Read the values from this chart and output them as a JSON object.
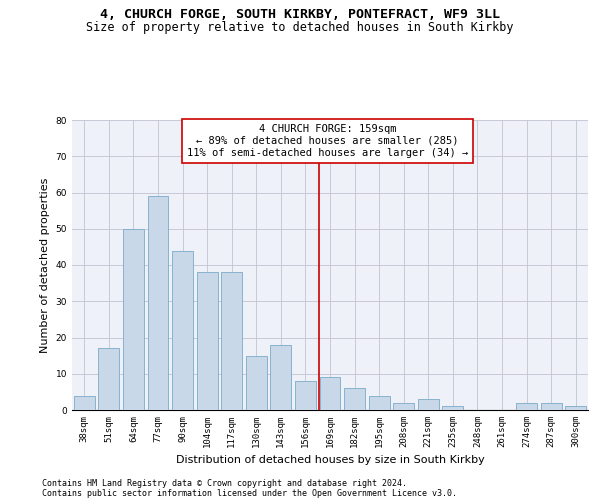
{
  "title_line1": "4, CHURCH FORGE, SOUTH KIRKBY, PONTEFRACT, WF9 3LL",
  "title_line2": "Size of property relative to detached houses in South Kirkby",
  "xlabel": "Distribution of detached houses by size in South Kirkby",
  "ylabel": "Number of detached properties",
  "categories": [
    "38sqm",
    "51sqm",
    "64sqm",
    "77sqm",
    "90sqm",
    "104sqm",
    "117sqm",
    "130sqm",
    "143sqm",
    "156sqm",
    "169sqm",
    "182sqm",
    "195sqm",
    "208sqm",
    "221sqm",
    "235sqm",
    "248sqm",
    "261sqm",
    "274sqm",
    "287sqm",
    "300sqm"
  ],
  "values": [
    4,
    17,
    50,
    59,
    44,
    38,
    38,
    15,
    18,
    8,
    9,
    6,
    4,
    2,
    3,
    1,
    0,
    0,
    2,
    2,
    1
  ],
  "bar_color": "#c8d8e8",
  "bar_edge_color": "#7aaac8",
  "annotation_line1": "4 CHURCH FORGE: 159sqm",
  "annotation_line2": "← 89% of detached houses are smaller (285)",
  "annotation_line3": "11% of semi-detached houses are larger (34) →",
  "vline_color": "#cc0000",
  "vline_x_index": 9.538,
  "ylim": [
    0,
    80
  ],
  "yticks": [
    0,
    10,
    20,
    30,
    40,
    50,
    60,
    70,
    80
  ],
  "grid_color": "#c8c8d8",
  "background_color": "#eef2f8",
  "footer_line1": "Contains HM Land Registry data © Crown copyright and database right 2024.",
  "footer_line2": "Contains public sector information licensed under the Open Government Licence v3.0.",
  "title_fontsize": 9.5,
  "subtitle_fontsize": 8.5,
  "axis_label_fontsize": 8,
  "tick_fontsize": 6.5,
  "annotation_fontsize": 7.5,
  "footer_fontsize": 6.0,
  "ylabel_fontsize": 8
}
